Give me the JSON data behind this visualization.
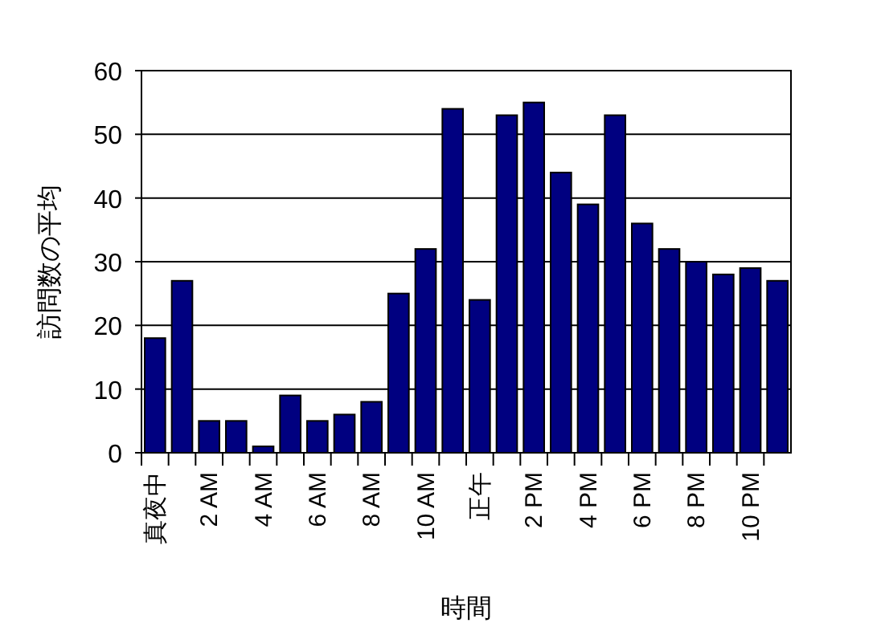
{
  "chart_data": {
    "type": "bar",
    "xlabel": "時間",
    "ylabel": "訪問数の平均",
    "categories": [
      "真夜中",
      null,
      "2 AM",
      null,
      "4 AM",
      null,
      "6 AM",
      null,
      "8 AM",
      null,
      "10 AM",
      null,
      "正午",
      null,
      "2 PM",
      null,
      "4 PM",
      null,
      "6 PM",
      null,
      "8 PM",
      null,
      "10 PM",
      null
    ],
    "values": [
      18,
      27,
      5,
      5,
      1,
      9,
      5,
      6,
      8,
      25,
      32,
      54,
      24,
      53,
      55,
      44,
      39,
      53,
      36,
      32,
      30,
      28,
      29,
      27
    ],
    "color": "#000080",
    "ylim": [
      0,
      60
    ],
    "yticks": [
      0,
      10,
      20,
      30,
      40,
      50,
      60
    ],
    "grid": "y"
  }
}
